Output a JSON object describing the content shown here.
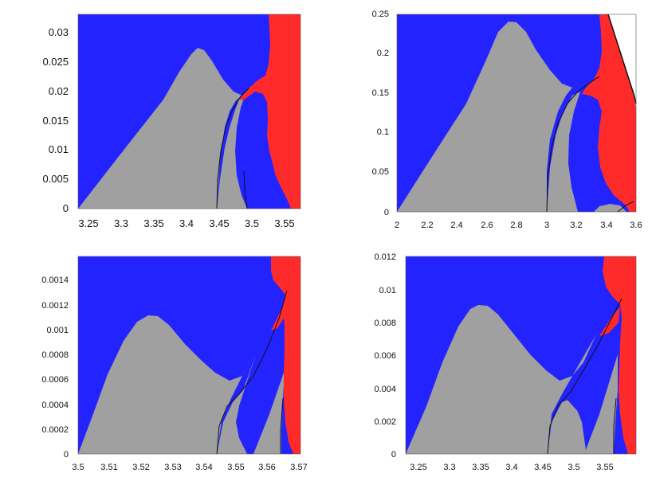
{
  "colors": {
    "blue": "#2323ff",
    "gray": "#a0a0a0",
    "red": "#ff2a2a",
    "white": "#ffffff",
    "curve": "#111111"
  },
  "chart_data": [
    {
      "type": "heatmap",
      "x_ticks": [
        "3.25",
        "3.3",
        "3.35",
        "3.4",
        "3.45",
        "3.5",
        "3.55"
      ],
      "x_tick_values": [
        3.25,
        3.3,
        3.35,
        3.4,
        3.45,
        3.5,
        3.55
      ],
      "y_ticks": [
        "0",
        "0.005",
        "0.01",
        "0.015",
        "0.02",
        "0.025",
        "0.03"
      ],
      "y_tick_values": [
        0,
        0.005,
        0.01,
        0.015,
        0.02,
        0.025,
        0.03
      ],
      "xlim": [
        3.23,
        3.57
      ],
      "ylim": [
        0,
        0.0333
      ],
      "regions": [
        "blue",
        "gray",
        "red"
      ]
    },
    {
      "type": "heatmap",
      "x_ticks": [
        "2",
        "2.2",
        "2.4",
        "2.6",
        "2.8",
        "3",
        "3.2",
        "3.4",
        "3.6"
      ],
      "x_tick_values": [
        2,
        2.2,
        2.4,
        2.6,
        2.8,
        3,
        3.2,
        3.4,
        3.6
      ],
      "y_ticks": [
        "0",
        "0.05",
        "0.1",
        "0.15",
        "0.2",
        "0.25"
      ],
      "y_tick_values": [
        0,
        0.05,
        0.1,
        0.15,
        0.2,
        0.25
      ],
      "xlim": [
        2,
        3.6
      ],
      "ylim": [
        0,
        0.25
      ],
      "regions": [
        "blue",
        "gray",
        "red",
        "white"
      ]
    },
    {
      "type": "heatmap",
      "x_ticks": [
        "3.5",
        "3.51",
        "3.52",
        "3.53",
        "3.54",
        "3.55",
        "3.56",
        "3.57"
      ],
      "x_tick_values": [
        3.5,
        3.51,
        3.52,
        3.53,
        3.54,
        3.55,
        3.56,
        3.57
      ],
      "y_ticks": [
        "0",
        "0.0002",
        "0.0004",
        "0.0006",
        "0.0008",
        "0.001",
        "0.0012",
        "0.0014"
      ],
      "y_tick_values": [
        0,
        0.0002,
        0.0004,
        0.0006,
        0.0008,
        0.001,
        0.0012,
        0.0014
      ],
      "xlim": [
        3.5,
        3.5705
      ],
      "ylim": [
        0,
        0.00159
      ],
      "regions": [
        "blue",
        "gray",
        "red"
      ]
    },
    {
      "type": "heatmap",
      "x_ticks": [
        "3.25",
        "3.3",
        "3.35",
        "3.4",
        "3.45",
        "3.5",
        "3.55"
      ],
      "x_tick_values": [
        3.25,
        3.3,
        3.35,
        3.4,
        3.45,
        3.5,
        3.55
      ],
      "y_ticks": [
        "0",
        "0.002",
        "0.004",
        "0.006",
        "0.008",
        "0.01",
        "0.012"
      ],
      "y_tick_values": [
        0,
        0.002,
        0.004,
        0.006,
        0.008,
        0.01,
        0.012
      ],
      "xlim": [
        3.21,
        3.58
      ],
      "ylim": [
        0,
        0.012
      ],
      "regions": [
        "blue",
        "gray",
        "red"
      ]
    }
  ]
}
